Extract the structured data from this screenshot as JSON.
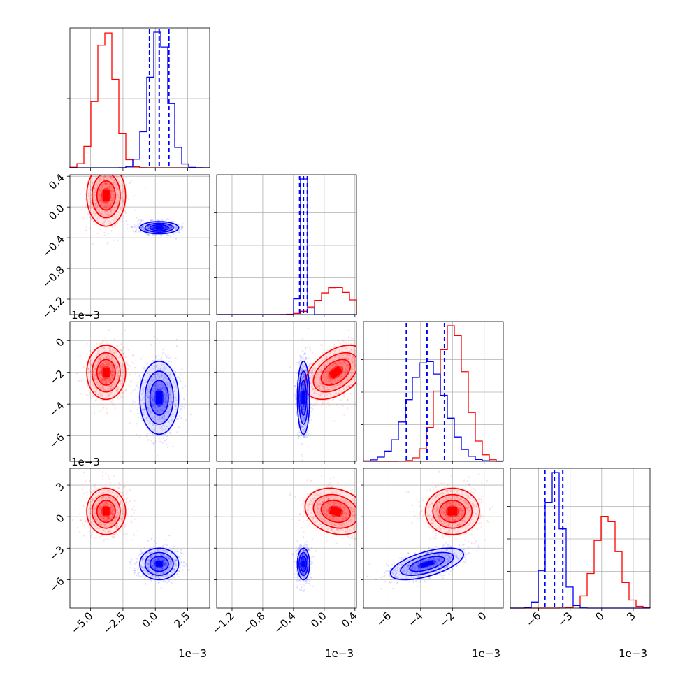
{
  "colors": {
    "red": "#ff0000",
    "blue": "#0000ff",
    "grid": "#b0b0b0"
  },
  "chart_data": {
    "type": "scatter",
    "plot_kind": "corner",
    "grid": true,
    "series": [
      {
        "color": "#ff0000",
        "quantiles_shown": false
      },
      {
        "color": "#0000ff",
        "quantiles_shown": true
      }
    ],
    "variables": [
      {
        "range": [
          -0.0066,
          0.0042
        ],
        "ticks": [
          -0.005,
          -0.0025,
          0.0,
          0.0025
        ],
        "tick_labels": [
          "−5.0",
          "−2.5",
          "0.0",
          "2.5"
        ],
        "offset_label": "1e−3",
        "red": {
          "mean": -0.0038,
          "sd": 0.00075
        },
        "blue": {
          "mean": 0.0003,
          "sd": 0.00075
        },
        "blue_quantiles": [
          -0.00045,
          0.0003,
          0.00105
        ]
      },
      {
        "range": [
          -0.0014,
          0.00042
        ],
        "ticks": [
          -0.0012,
          -0.0008,
          -0.0004,
          0.0,
          0.0004
        ],
        "tick_labels": [
          "−1.2",
          "−0.8",
          "−0.4",
          "0.0",
          "0.4"
        ],
        "offset_label": "1e−3",
        "red": {
          "mean": 0.00015,
          "sd": 0.0002
        },
        "blue": {
          "mean": -0.00027,
          "sd": 4e-05
        },
        "blue_quantiles": [
          -0.00032,
          -0.00027,
          -0.00022
        ]
      },
      {
        "range": [
          -0.0076,
          0.0012
        ],
        "ticks": [
          -0.006,
          -0.004,
          -0.002,
          0.0
        ],
        "tick_labels": [
          "−6",
          "−4",
          "−2",
          "0"
        ],
        "offset_label": "1e−3",
        "red": {
          "mean": -0.002,
          "sd": 0.00085
        },
        "blue": {
          "mean": -0.0036,
          "sd": 0.00115
        },
        "blue_quantiles": [
          -0.0049,
          -0.0036,
          -0.0025
        ]
      },
      {
        "range": [
          -0.0087,
          0.0046
        ],
        "ticks": [
          -0.006,
          -0.003,
          0.0,
          0.003
        ],
        "tick_labels": [
          "−6",
          "−3",
          "0",
          "3"
        ],
        "offset_label": "1e−3",
        "red": {
          "mean": 0.0005,
          "sd": 0.0011
        },
        "blue": {
          "mean": -0.0045,
          "sd": 0.00075
        },
        "blue_quantiles": [
          -0.0054,
          -0.0045,
          -0.0037
        ]
      }
    ],
    "correlations": {
      "red": {
        "1-0": 0.0,
        "2-0": 0.0,
        "2-1": 0.45,
        "3-0": 0.0,
        "3-1": -0.2,
        "3-2": 0.0
      },
      "blue": {
        "1-0": 0.0,
        "2-0": 0.0,
        "2-1": 0.0,
        "3-0": 0.0,
        "3-1": 0.0,
        "3-2": 0.6
      }
    }
  }
}
